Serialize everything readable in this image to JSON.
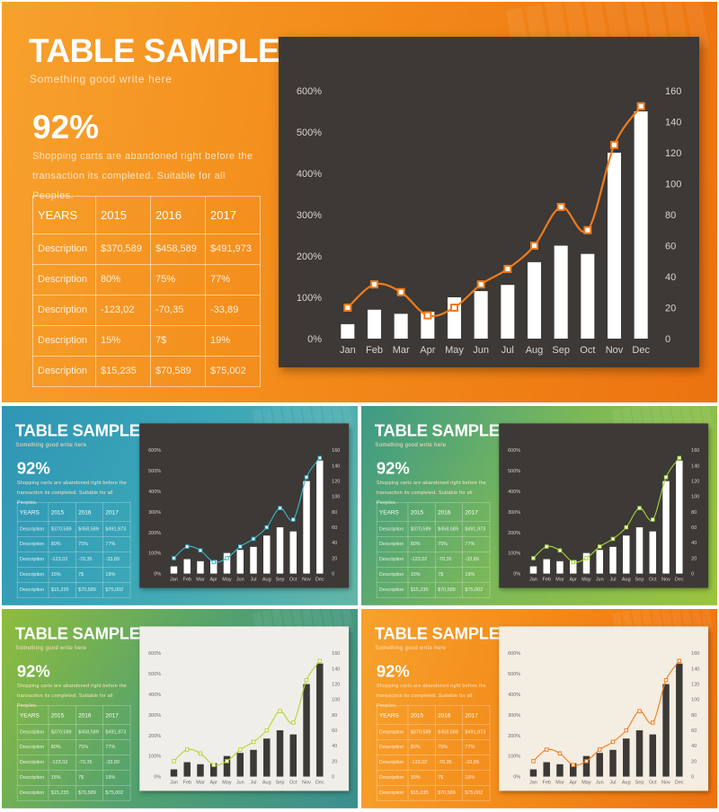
{
  "slide": {
    "title": "TABLE SAMPLE",
    "subtitle": "Something  good  write here",
    "highlight_value": "92%",
    "description": "Shopping  carts  are  abandoned  right  before  the  transaction  its completed.  Suitable  for  all  Peoples.",
    "table": {
      "headers": [
        "YEARS",
        "2015",
        "2016",
        "2017"
      ],
      "rows": [
        [
          "Description",
          "$370,589",
          "$458,589",
          "$491,973"
        ],
        [
          "Description",
          "80%",
          "75%",
          "77%"
        ],
        [
          "Description",
          "-123,02",
          "-70,35",
          "-33,89"
        ],
        [
          "Description",
          "15%",
          "7$",
          "19%"
        ],
        [
          "Description",
          "$15,235",
          "$70,589",
          "$75,002"
        ]
      ]
    }
  },
  "themes": {
    "orange": {
      "accent": "#f0861b",
      "line": "#f07b1a",
      "bar": "#ffffff",
      "axis": "#d9d4ce"
    },
    "blue": {
      "accent": "#2f95b4",
      "line": "#3bb8d0",
      "bar": "#ffffff",
      "axis": "#d9d4ce"
    },
    "green": {
      "accent": "#7eb957",
      "line": "#a8d43a",
      "bar": "#ffffff",
      "axis": "#d9d4ce"
    },
    "lime_light": {
      "accent": "#8fbd3d",
      "line": "#b4d433",
      "bar": "#3c3936",
      "axis": "#6b6b6b"
    },
    "orange_light": {
      "accent": "#f0861b",
      "line": "#f07b1a",
      "bar": "#3c3936",
      "axis": "#6b6b6b"
    }
  },
  "chart_data": {
    "type": "bar",
    "categories": [
      "Jan",
      "Feb",
      "Mar",
      "Apr",
      "May",
      "Jun",
      "Jul",
      "Aug",
      "Sep",
      "Oct",
      "Nov",
      "Dec"
    ],
    "series": [
      {
        "axis": "left",
        "type": "bar",
        "values": [
          35,
          70,
          60,
          65,
          100,
          115,
          130,
          185,
          225,
          205,
          450,
          550
        ]
      },
      {
        "axis": "right",
        "type": "line",
        "values": [
          20,
          35,
          30,
          15,
          20,
          35,
          45,
          60,
          85,
          70,
          125,
          150
        ]
      }
    ],
    "y_left": {
      "ticks": [
        "0%",
        "100%",
        "200%",
        "300%",
        "400%",
        "500%",
        "600%"
      ],
      "range": [
        0,
        600
      ]
    },
    "y_right": {
      "ticks": [
        "0",
        "20",
        "40",
        "60",
        "80",
        "100",
        "120",
        "140",
        "160"
      ],
      "range": [
        0,
        160
      ]
    },
    "grid": false,
    "legend": "none"
  }
}
